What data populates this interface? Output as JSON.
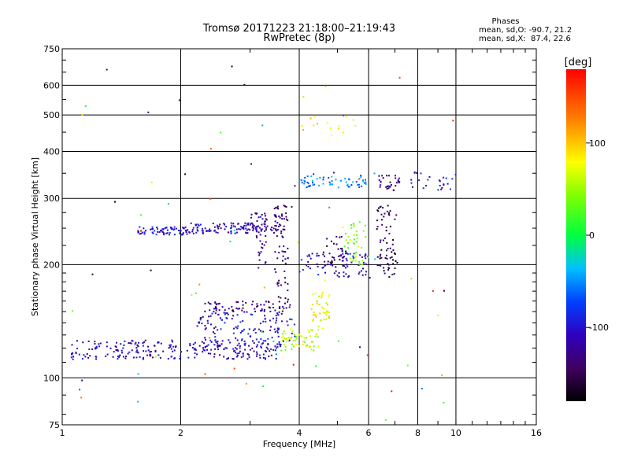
{
  "chart_data": {
    "type": "scatter",
    "title": "Tromsø 20171223 21:18:00–21:19:43",
    "subtitle": "RwPretec (8p)",
    "xlabel": "Frequency [MHz]",
    "ylabel": "Stationary phase Virtual Height [km]",
    "x_scale": "log",
    "y_scale": "log",
    "xlim": [
      1,
      16
    ],
    "ylim": [
      75,
      750
    ],
    "x_ticks": [
      1,
      2,
      4,
      6,
      8,
      10,
      16
    ],
    "x_tick_labels": [
      "1",
      "2",
      "4",
      "6",
      "8",
      "10",
      "16"
    ],
    "y_ticks": [
      75,
      100,
      200,
      300,
      400,
      500,
      600,
      750
    ],
    "y_tick_labels": [
      "75",
      "100",
      "200",
      "300",
      "400",
      "500",
      "600",
      "750"
    ],
    "grid": true,
    "phases_box": {
      "title": "Phases",
      "line_o": "mean, sd,O: -90.7, 21.2",
      "line_x": "mean, sd,X:  87.4, 22.6"
    },
    "colorbar": {
      "title": "[deg]",
      "range": [
        -180,
        180
      ],
      "ticks": [
        100,
        0,
        -100
      ],
      "tick_labels": [
        "100",
        "0",
        "-100"
      ]
    },
    "clusters": [
      {
        "name": "o-trace-low",
        "x_range": [
          1.05,
          3.6
        ],
        "y_range": [
          112,
          126
        ],
        "phase": -110,
        "count": 260
      },
      {
        "name": "o-trace-bend",
        "x_range": [
          3.6,
          4.5
        ],
        "y_range": [
          118,
          135
        ],
        "phase": 60,
        "count": 60
      },
      {
        "name": "o-trace-rise",
        "x_range": [
          4.3,
          4.8
        ],
        "y_range": [
          135,
          170
        ],
        "phase": 80,
        "count": 45
      },
      {
        "name": "o-trace-mid",
        "x_range": [
          2.2,
          3.9
        ],
        "y_range": [
          125,
          150
        ],
        "phase": -100,
        "count": 120
      },
      {
        "name": "o-trace-150",
        "x_range": [
          2.3,
          3.8
        ],
        "y_range": [
          150,
          160
        ],
        "phase": -130,
        "count": 70
      },
      {
        "name": "f-layer-low",
        "x_range": [
          1.55,
          2.1
        ],
        "y_range": [
          240,
          252
        ],
        "phase": -100,
        "count": 70
      },
      {
        "name": "f-layer-mid",
        "x_range": [
          2.1,
          3.3
        ],
        "y_range": [
          242,
          258
        ],
        "phase": -110,
        "count": 100
      },
      {
        "name": "f-layer-rise",
        "x_range": [
          3.0,
          3.65
        ],
        "y_range": [
          245,
          275
        ],
        "phase": -130,
        "count": 40
      },
      {
        "name": "vertical-3p6",
        "x_range": [
          3.45,
          3.75
        ],
        "y_range": [
          150,
          290
        ],
        "phase": -140,
        "count": 60
      },
      {
        "name": "vertical-3p2",
        "x_range": [
          3.1,
          3.3
        ],
        "y_range": [
          190,
          270
        ],
        "phase": -120,
        "count": 30
      },
      {
        "name": "mid-4to6",
        "x_range": [
          4.0,
          6.0
        ],
        "y_range": [
          185,
          215
        ],
        "phase": -110,
        "count": 80
      },
      {
        "name": "x-trace-5to6",
        "x_range": [
          5.2,
          6.0
        ],
        "y_range": [
          200,
          260
        ],
        "phase": 40,
        "count": 40
      },
      {
        "name": "x-rise-5",
        "x_range": [
          4.6,
          5.3
        ],
        "y_range": [
          195,
          240
        ],
        "phase": -150,
        "count": 30
      },
      {
        "name": "high-6p5",
        "x_range": [
          6.3,
          7.1
        ],
        "y_range": [
          185,
          290
        ],
        "phase": -150,
        "count": 70
      },
      {
        "name": "cluster-320",
        "x_range": [
          4.0,
          6.0
        ],
        "y_range": [
          320,
          345
        ],
        "phase": -60,
        "count": 60
      },
      {
        "name": "cluster-320-b",
        "x_range": [
          6.3,
          7.2
        ],
        "y_range": [
          315,
          345
        ],
        "phase": -130,
        "count": 30
      },
      {
        "name": "cluster-330-c",
        "x_range": [
          7.6,
          10.0
        ],
        "y_range": [
          315,
          355
        ],
        "phase": -100,
        "count": 25
      },
      {
        "name": "cluster-470",
        "x_range": [
          4.0,
          5.6
        ],
        "y_range": [
          440,
          495
        ],
        "phase": 90,
        "count": 15
      },
      {
        "name": "scatter-sparse",
        "x_range": [
          1.0,
          10.5
        ],
        "y_range": [
          75,
          700
        ],
        "phase": 0,
        "count": 80
      }
    ]
  }
}
